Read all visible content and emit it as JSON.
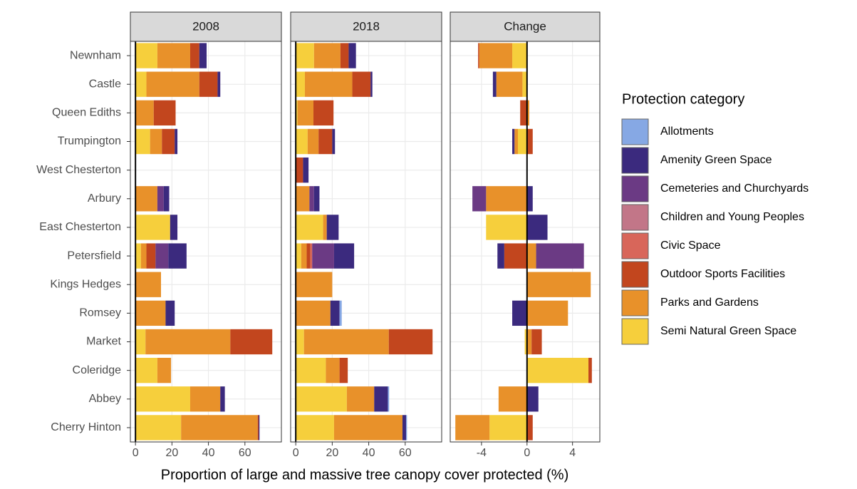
{
  "chart_data": {
    "type": "bar",
    "x_label": "Proportion of large and massive tree canopy cover protected (%)",
    "legend_title": "Protection category",
    "categories": [
      "Newnham",
      "Castle",
      "Queen Ediths",
      "Trumpington",
      "West Chesterton",
      "Arbury",
      "East Chesterton",
      "Petersfield",
      "Kings Hedges",
      "Romsey",
      "Market",
      "Coleridge",
      "Abbey",
      "Cherry Hinton"
    ],
    "series": [
      {
        "name": "Allotments",
        "color": "#86a8e4"
      },
      {
        "name": "Amenity Green Space",
        "color": "#3b2a7e"
      },
      {
        "name": "Cemeteries and Churchyards",
        "color": "#6b3a84"
      },
      {
        "name": "Children and Young Peoples",
        "color": "#c27688"
      },
      {
        "name": "Civic Space",
        "color": "#d8665a"
      },
      {
        "name": "Outdoor Sports Facilities",
        "color": "#c2461e"
      },
      {
        "name": "Parks and Gardens",
        "color": "#e8912a"
      },
      {
        "name": "Semi Natural Green Space",
        "color": "#f6cf3c"
      }
    ],
    "facets": [
      {
        "title": "2008",
        "xlim": [
          -2.8,
          80
        ],
        "xticks": [
          0,
          20,
          40,
          60
        ],
        "values": [
          [
            0,
            0,
            0,
            0,
            0,
            0,
            0,
            0,
            0,
            0,
            0,
            0,
            0,
            0
          ],
          [
            4,
            1.5,
            0,
            1.5,
            0,
            3,
            4,
            10,
            0,
            5,
            0,
            0,
            2.5,
            0.5
          ],
          [
            0,
            0,
            0,
            0,
            0,
            3.5,
            0,
            7,
            0,
            0,
            0,
            0,
            0,
            0
          ],
          [
            0,
            0,
            0,
            0,
            0,
            0,
            0,
            0,
            0,
            0,
            0,
            0,
            0,
            0
          ],
          [
            0,
            0,
            0,
            0,
            0,
            0,
            0,
            0,
            0,
            0,
            0,
            0,
            0,
            0
          ],
          [
            5,
            10,
            12,
            7,
            0,
            0,
            0,
            5,
            0,
            0,
            23,
            0,
            0,
            0.5
          ],
          [
            18,
            29,
            10,
            6.5,
            0,
            12,
            0,
            3,
            14,
            16.5,
            46.5,
            7.5,
            16.5,
            42
          ],
          [
            12,
            6,
            0,
            8,
            0,
            0,
            19,
            3,
            0,
            0,
            5.5,
            12,
            30,
            25
          ]
        ]
      },
      {
        "title": "2018",
        "xlim": [
          -2.8,
          80
        ],
        "xticks": [
          0,
          20,
          40,
          60
        ],
        "values": [
          [
            0,
            0,
            0,
            0,
            0,
            0,
            0,
            0,
            0,
            1.2,
            0,
            0,
            0.7,
            0.5
          ],
          [
            4,
            1,
            0,
            1.5,
            3,
            3,
            6.5,
            11,
            0,
            5,
            0,
            0,
            7.5,
            2
          ],
          [
            0,
            0,
            0,
            0,
            0,
            2.5,
            0,
            12,
            0,
            0,
            0,
            0,
            0,
            0
          ],
          [
            0,
            0,
            0,
            0,
            0,
            0,
            0,
            0,
            0,
            0,
            0,
            0,
            0,
            0
          ],
          [
            0,
            0,
            0,
            0,
            0,
            0,
            0,
            1,
            0,
            0,
            0,
            0,
            0,
            0
          ],
          [
            4.5,
            10,
            11,
            7.5,
            4,
            0,
            0,
            2,
            0,
            0,
            24,
            4.5,
            0,
            0
          ],
          [
            14.5,
            26,
            8.7,
            6,
            0,
            7.5,
            2,
            3,
            20,
            19,
            46.5,
            7.5,
            15,
            37.5
          ],
          [
            10,
            5,
            1,
            6.5,
            0,
            0,
            15,
            3,
            0,
            0,
            4.5,
            16.5,
            28,
            21
          ]
        ]
      },
      {
        "title": "Change",
        "xlim": [
          -6.75,
          6.4
        ],
        "xticks": [
          -4,
          0,
          4
        ],
        "values": [
          [
            0,
            0,
            0,
            0,
            0,
            0,
            0,
            0,
            0,
            0,
            0,
            0,
            0,
            0
          ],
          [
            0,
            -0.3,
            0,
            -0.2,
            0,
            0.5,
            1.8,
            -0.6,
            0,
            -1.3,
            0,
            0,
            1,
            0
          ],
          [
            0,
            0,
            0,
            0,
            0,
            -1.2,
            0,
            4.2,
            0,
            0,
            0,
            0,
            0,
            0
          ],
          [
            0,
            0,
            0,
            0,
            0,
            0,
            0,
            0,
            0,
            0,
            0,
            0,
            0,
            0
          ],
          [
            0,
            0,
            0,
            0,
            0,
            0,
            0,
            0,
            0,
            0,
            0,
            0,
            0,
            0
          ],
          [
            -0.1,
            0,
            -0.6,
            0.5,
            0,
            0,
            0,
            -2,
            0,
            0,
            0.9,
            0.3,
            0,
            0.5
          ],
          [
            -2.9,
            -2.3,
            0.2,
            -0.3,
            0,
            -3.6,
            0,
            0.8,
            5.6,
            3.6,
            0.4,
            0,
            -2.5,
            -3
          ],
          [
            -1.3,
            -0.4,
            0,
            -0.8,
            0,
            0,
            -3.6,
            0,
            0,
            0,
            -0.2,
            5.4,
            0,
            -3.3
          ]
        ]
      }
    ]
  }
}
